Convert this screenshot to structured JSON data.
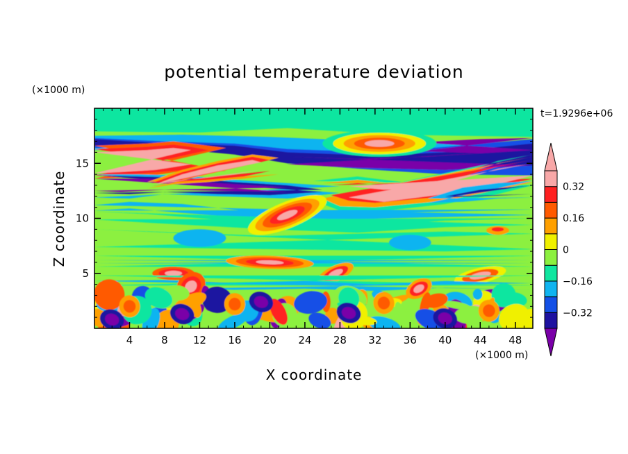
{
  "chart_data": {
    "type": "heatmap",
    "title": "potential temperature deviation",
    "xlabel": "X coordinate",
    "ylabel": "Z coordinate",
    "x_unit": "(×1000 m)",
    "y_unit": "(×1000 m)",
    "time_label": "t=1.9296e+06",
    "xlim": [
      0,
      50
    ],
    "ylim": [
      0,
      20
    ],
    "x_ticks": [
      4,
      8,
      12,
      16,
      20,
      24,
      28,
      32,
      36,
      40,
      44,
      48
    ],
    "y_ticks": [
      5,
      10,
      15
    ],
    "colorbar": {
      "levels": [
        -0.4,
        -0.32,
        -0.24,
        -0.16,
        -0.08,
        0,
        0.08,
        0.16,
        0.24,
        0.32,
        0.4
      ],
      "tick_labels": [
        "0.32",
        "0.16",
        "0",
        "−0.16",
        "−0.32"
      ],
      "tick_values": [
        0.32,
        0.16,
        0,
        -0.16,
        -0.32
      ],
      "colors": [
        "#7a00a8",
        "#1e12a0",
        "#1450e6",
        "#10b4f0",
        "#10e6a0",
        "#8cf040",
        "#f0f000",
        "#ffa000",
        "#ff5a00",
        "#ff2020",
        "#f8a8a8"
      ]
    }
  }
}
